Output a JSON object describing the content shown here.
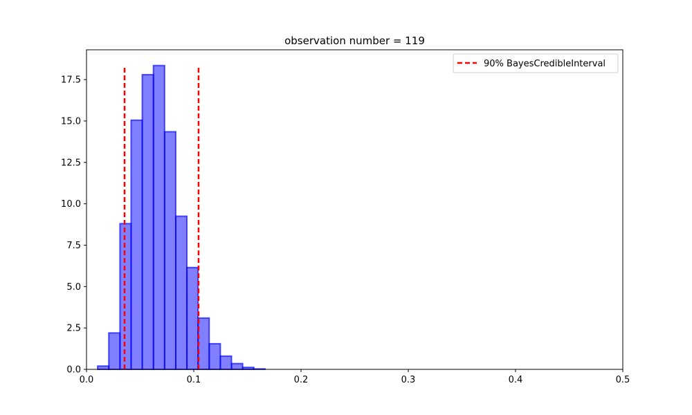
{
  "chart_data": {
    "type": "bar",
    "title": "observation number = 119",
    "xlabel": "",
    "ylabel": "",
    "xlim": [
      0,
      0.5
    ],
    "ylim": [
      0,
      19.3
    ],
    "grid": false,
    "legend_position": "top-right",
    "x_ticks": [
      0,
      0.1,
      0.2,
      0.3,
      0.4,
      0.5
    ],
    "x_tick_labels": [
      "0.0",
      "0.1",
      "0.2",
      "0.3",
      "0.4",
      "0.5"
    ],
    "y_ticks": [
      0,
      2.5,
      5,
      7.5,
      10,
      12.5,
      15,
      17.5
    ],
    "y_tick_labels": [
      "0.0",
      "2.5",
      "5.0",
      "7.5",
      "10.0",
      "12.5",
      "15.0",
      "17.5"
    ],
    "histogram": {
      "bin_width": 0.0104,
      "bins": [
        {
          "x0": 0.0104,
          "x1": 0.0208,
          "y": 0.2
        },
        {
          "x0": 0.0208,
          "x1": 0.0312,
          "y": 2.2
        },
        {
          "x0": 0.0312,
          "x1": 0.0416,
          "y": 8.8
        },
        {
          "x0": 0.0416,
          "x1": 0.052,
          "y": 15.05
        },
        {
          "x0": 0.052,
          "x1": 0.0624,
          "y": 17.8
        },
        {
          "x0": 0.0624,
          "x1": 0.0728,
          "y": 18.35
        },
        {
          "x0": 0.0728,
          "x1": 0.0832,
          "y": 14.35
        },
        {
          "x0": 0.0832,
          "x1": 0.0936,
          "y": 9.25
        },
        {
          "x0": 0.0936,
          "x1": 0.104,
          "y": 6.15
        },
        {
          "x0": 0.104,
          "x1": 0.1144,
          "y": 3.1
        },
        {
          "x0": 0.1144,
          "x1": 0.1248,
          "y": 1.55
        },
        {
          "x0": 0.1248,
          "x1": 0.1352,
          "y": 0.8
        },
        {
          "x0": 0.1352,
          "x1": 0.1456,
          "y": 0.35
        },
        {
          "x0": 0.1456,
          "x1": 0.156,
          "y": 0.12
        },
        {
          "x0": 0.156,
          "x1": 0.1664,
          "y": 0.03
        }
      ],
      "fill_color": "#0000ff",
      "fill_opacity": 0.5,
      "edge_color": "#0000ff"
    },
    "interval_lines": {
      "label": "90% BayesCredibleInterval",
      "color": "#ff0000",
      "style": "dashed",
      "x": [
        0.0355,
        0.1045
      ],
      "y_top": 18.3
    }
  }
}
